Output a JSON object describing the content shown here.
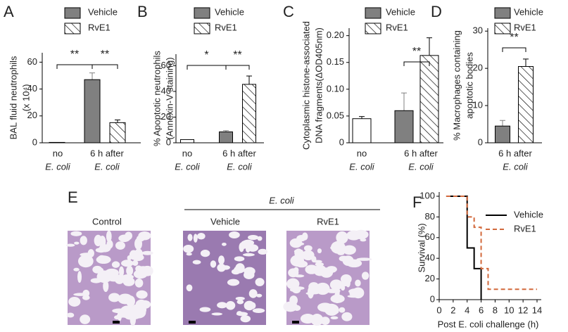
{
  "chart_data": [
    {
      "type": "bar",
      "label": "A",
      "ylabel": [
        "BAL fluid neutrophils",
        "(x 10⁴)"
      ],
      "categories": [
        "no",
        "6 h after"
      ],
      "category_sublabels": [
        "E. coli",
        "E. coli"
      ],
      "ylim": [
        0,
        67
      ],
      "yticks": [
        0,
        20,
        40,
        60
      ],
      "series": [
        {
          "name": "Vehicle",
          "color": "#808080",
          "values": [
            null,
            47
          ],
          "errors": [
            null,
            5
          ]
        },
        {
          "name": "RvE1",
          "color": "#000000",
          "hatch": true,
          "values": [
            null,
            15
          ],
          "errors": [
            null,
            2
          ]
        },
        {
          "color": "#ffffff",
          "values": [
            0.3,
            null
          ],
          "errors": [
            null,
            null
          ]
        }
      ],
      "significance": [
        "**",
        "**"
      ]
    },
    {
      "type": "bar",
      "label": "B",
      "ylabel": [
        "% Apoptotic neutrophils",
        "(Annexin-V staining)"
      ],
      "categories": [
        "no",
        "6 h after"
      ],
      "category_sublabels": [
        "E. coli",
        "E. coli"
      ],
      "ylim": [
        0,
        69
      ],
      "yticks": [
        0,
        20,
        40,
        60
      ],
      "series": [
        {
          "name": "Vehicle",
          "color": "#808080",
          "values": [
            null,
            8.5
          ],
          "errors": [
            null,
            1
          ]
        },
        {
          "name": "RvE1",
          "color": "#000000",
          "hatch": true,
          "values": [
            null,
            45.5
          ],
          "errors": [
            null,
            6.5
          ]
        },
        {
          "color": "#ffffff",
          "values": [
            2.5,
            null
          ],
          "errors": [
            null,
            null
          ]
        }
      ],
      "significance": [
        "*",
        "**"
      ]
    },
    {
      "type": "bar",
      "label": "C",
      "ylabel": [
        "Cytoplasmic histone-associated",
        "DNA fragments(ΔOD405nm)"
      ],
      "categories": [
        "no",
        "6 h after"
      ],
      "category_sublabels": [
        "E. coli",
        "E. coli"
      ],
      "ylim": [
        0,
        0.214
      ],
      "yticks": [
        0,
        0.05,
        {
          "value": 0.1,
          "label": "0.10"
        },
        0.15,
        {
          "value": 0.2,
          "label": "0.20"
        }
      ],
      "series": [
        {
          "name": "Vehicle",
          "color": "#808080",
          "values": [
            null,
            0.06
          ],
          "errors": [
            null,
            0.033
          ]
        },
        {
          "name": "RvE1",
          "color": "#000000",
          "hatch": true,
          "values": [
            null,
            0.163
          ],
          "errors": [
            null,
            0.033
          ]
        },
        {
          "color": "#ffffff",
          "values": [
            0.045,
            null
          ],
          "errors": [
            0.004,
            null
          ]
        }
      ],
      "significance": [
        "**"
      ]
    },
    {
      "type": "bar",
      "label": "D",
      "ylabel": [
        "% Macrophages containing",
        "apoptotic bodies"
      ],
      "categories": [
        "6 h after"
      ],
      "category_sublabels": [
        "E. coli"
      ],
      "ylim": [
        0,
        30.8
      ],
      "yticks": [
        0,
        10,
        20,
        30
      ],
      "series": [
        {
          "name": "Vehicle",
          "color": "#808080",
          "values": [
            4.5
          ],
          "errors": [
            1.5
          ]
        },
        {
          "name": "RvE1",
          "color": "#000000",
          "hatch": true,
          "values": [
            20.5
          ],
          "errors": [
            2
          ]
        }
      ],
      "significance": [
        "**"
      ]
    },
    {
      "type": "image",
      "label": "E",
      "group_label": "E. coli",
      "titles": [
        "Control",
        "Vehicle",
        "RvE1"
      ]
    },
    {
      "type": "line",
      "label": "F",
      "ylabel": "Survival (%)",
      "xlabel": "Post E. coli challenge (h)",
      "xlim": [
        0,
        14
      ],
      "xticks": [
        0,
        2,
        4,
        6,
        8,
        10,
        12,
        14
      ],
      "ylim": [
        0,
        100
      ],
      "yticks": [
        0,
        20,
        40,
        60,
        80,
        100
      ],
      "series": [
        {
          "name": "Vehicle",
          "color": "#000000",
          "linestyle": "solid",
          "x": [
            1,
            4,
            4,
            5,
            5,
            6,
            6
          ],
          "values": [
            100,
            100,
            50,
            50,
            30,
            30,
            0
          ]
        },
        {
          "name": "RvE1",
          "color": "#d2693c",
          "linestyle": "dashed",
          "x": [
            1,
            4,
            4,
            5,
            5,
            6,
            6,
            7,
            7,
            14
          ],
          "values": [
            100,
            100,
            80,
            80,
            70,
            70,
            30,
            30,
            10,
            10
          ]
        }
      ]
    }
  ]
}
